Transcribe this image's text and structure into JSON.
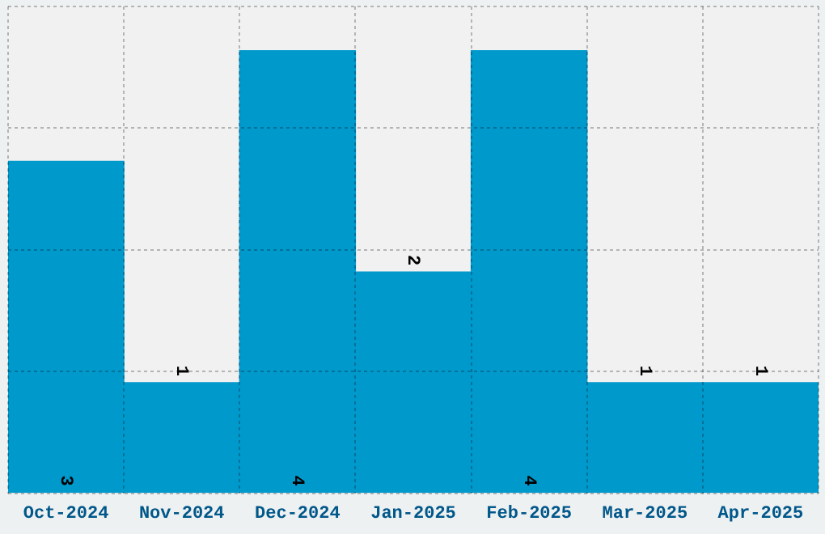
{
  "chart_data": {
    "type": "bar",
    "categories": [
      "Oct-2024",
      "Nov-2024",
      "Dec-2024",
      "Jan-2025",
      "Feb-2025",
      "Mar-2025",
      "Apr-2025"
    ],
    "values": [
      3,
      1,
      4,
      2,
      4,
      1,
      1
    ],
    "color": "#0099cc",
    "ylim": [
      0,
      4.4
    ],
    "yticks": [
      {
        "value": 0,
        "label": null
      },
      {
        "value": 1.1,
        "label": null
      },
      {
        "value": 2.2,
        "label": null
      },
      {
        "value": 3.3,
        "label": null
      },
      {
        "value": 4.4,
        "label": null
      }
    ],
    "tick_labels": "x",
    "grid": true,
    "data_labels": true,
    "legend": false
  }
}
